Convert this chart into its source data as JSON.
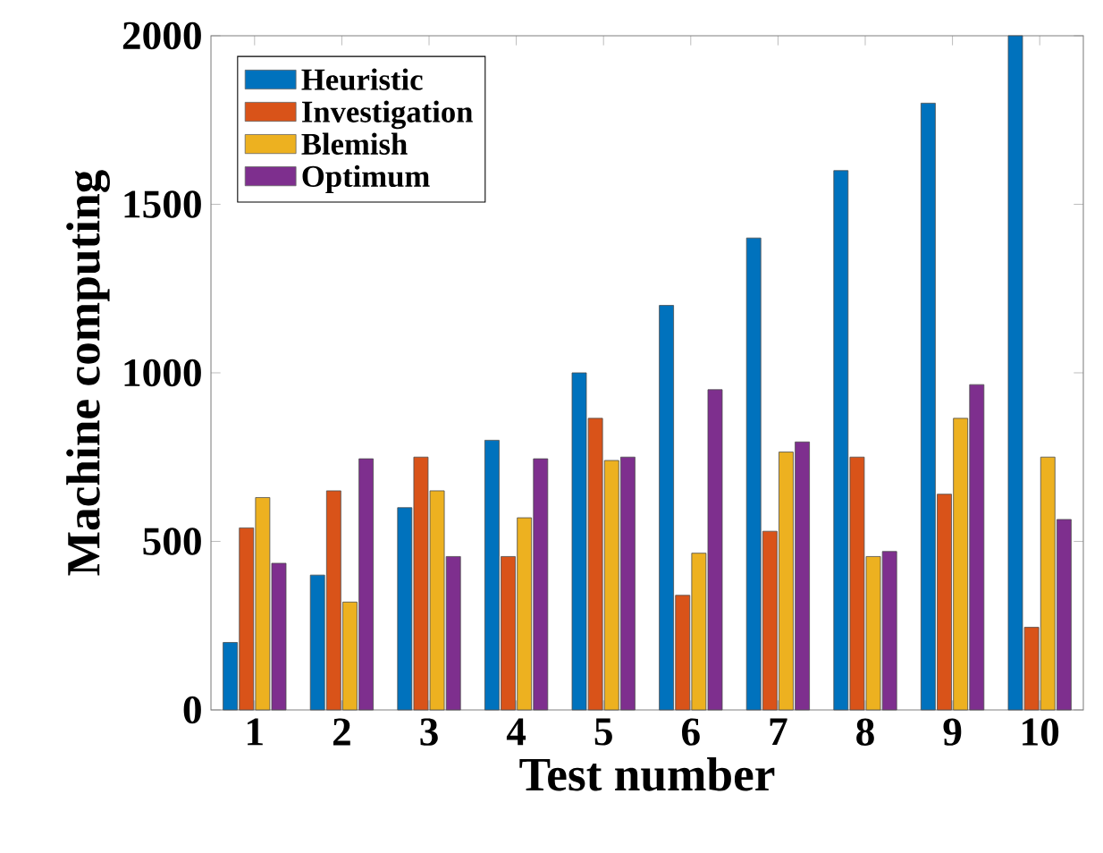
{
  "chart_data": {
    "type": "bar",
    "xlabel": "Test number",
    "ylabel": "Machine computing",
    "categories": [
      "1",
      "2",
      "3",
      "4",
      "5",
      "6",
      "7",
      "8",
      "9",
      "10"
    ],
    "series": [
      {
        "name": "Heuristic",
        "color": "#0072bd",
        "values": [
          200,
          400,
          600,
          800,
          1000,
          1200,
          1400,
          1600,
          1800,
          2000
        ]
      },
      {
        "name": "Investigation",
        "color": "#d95319",
        "values": [
          540,
          650,
          750,
          455,
          865,
          340,
          530,
          750,
          640,
          245
        ]
      },
      {
        "name": "Blemish",
        "color": "#edb120",
        "values": [
          630,
          320,
          650,
          570,
          740,
          465,
          765,
          455,
          865,
          750
        ]
      },
      {
        "name": "Optimum",
        "color": "#7e2f8e",
        "values": [
          435,
          745,
          455,
          745,
          750,
          950,
          795,
          470,
          965,
          565
        ]
      }
    ],
    "ylim": [
      0,
      2000
    ],
    "yticks": [
      0,
      500,
      1000,
      1500,
      2000
    ],
    "grid": false,
    "legend": "top left"
  }
}
